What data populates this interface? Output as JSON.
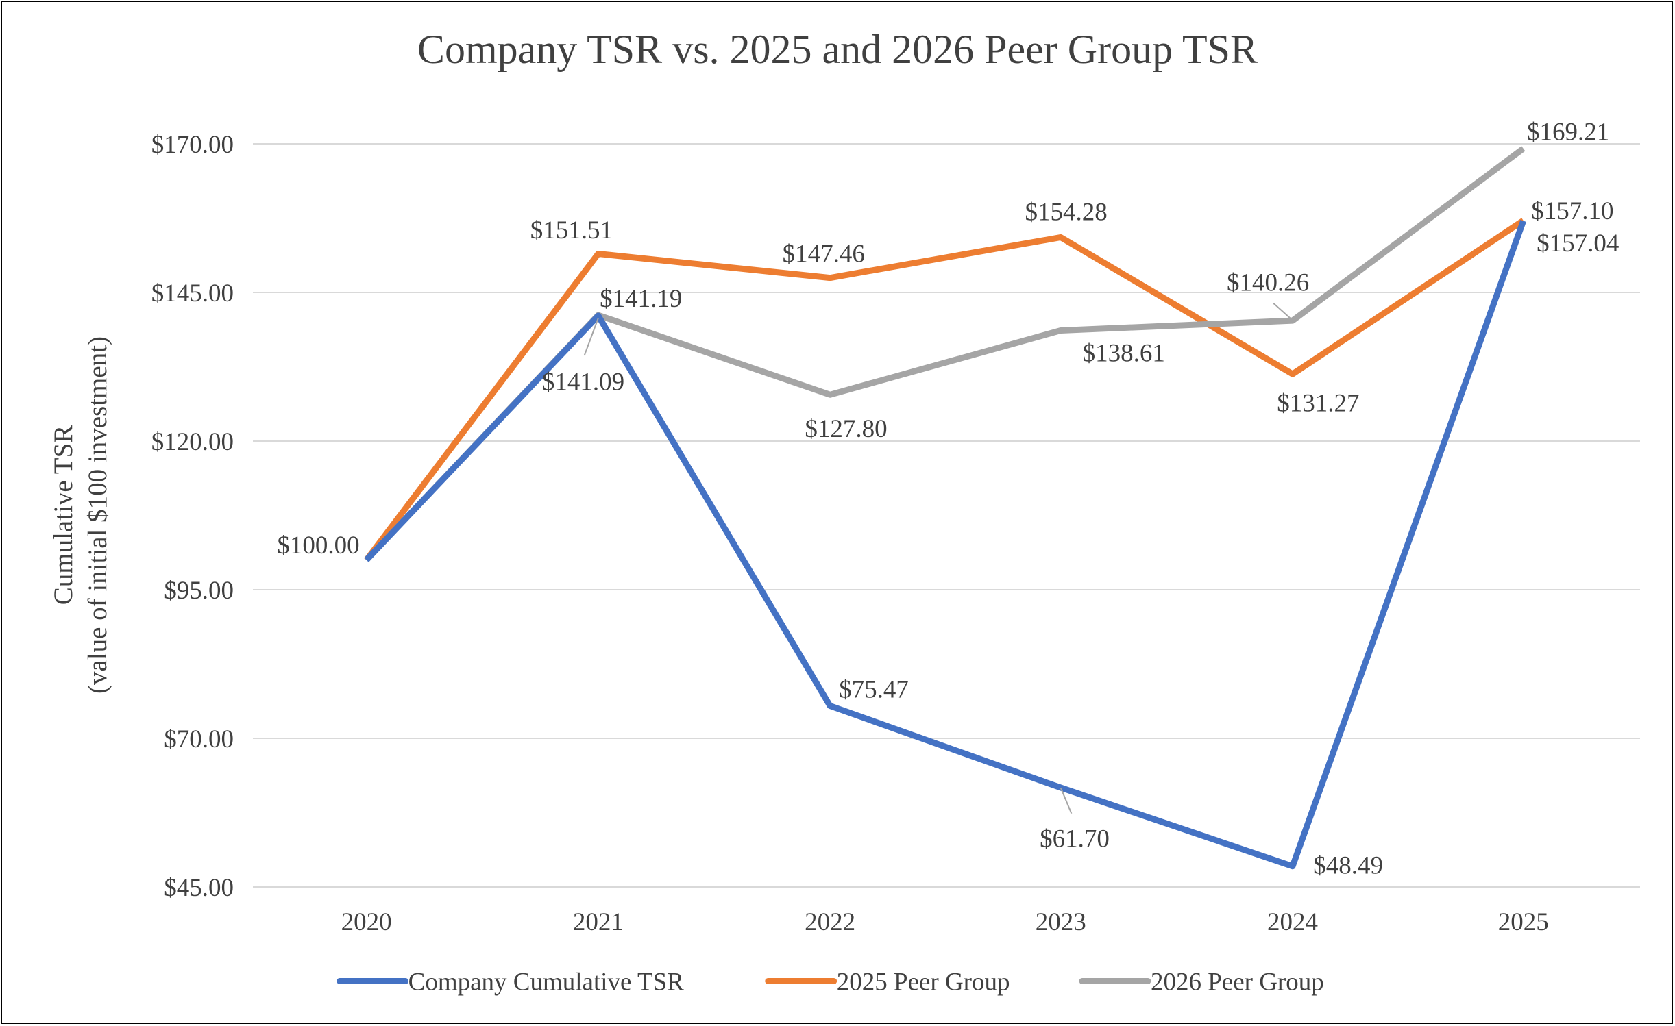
{
  "chart_data": {
    "type": "line",
    "title": "Company TSR vs. 2025 and 2026 Peer Group TSR",
    "xlabel": "",
    "ylabel": [
      "Cumulative TSR",
      "(value of initial $100 investment)"
    ],
    "categories": [
      "2020",
      "2021",
      "2022",
      "2023",
      "2024",
      "2025"
    ],
    "ylim": [
      45,
      170
    ],
    "yticks": [
      45,
      70,
      95,
      120,
      145,
      170
    ],
    "ytick_labels": [
      "$45.00",
      "$70.00",
      "$95.00",
      "$120.00",
      "$145.00",
      "$170.00"
    ],
    "grid": "horizontal",
    "legend_position": "bottom",
    "series": [
      {
        "name": "Company Cumulative TSR",
        "color": "#4472C4",
        "values": [
          100.0,
          141.09,
          75.47,
          61.7,
          48.49,
          157.04
        ],
        "labels": [
          "$100.00",
          "$141.09",
          "$75.47",
          "$61.70",
          "$48.49",
          "$157.04"
        ]
      },
      {
        "name": "2025 Peer Group",
        "color": "#ED7D31",
        "values": [
          100.0,
          151.51,
          147.46,
          154.28,
          131.27,
          157.1
        ],
        "labels": [
          null,
          "$151.51",
          "$147.46",
          "$154.28",
          "$131.27",
          "$157.10"
        ]
      },
      {
        "name": "2026 Peer Group",
        "color": "#A5A5A5",
        "values": [
          100.0,
          141.19,
          127.8,
          138.61,
          140.26,
          169.21
        ],
        "labels": [
          null,
          "$141.19",
          "$127.80",
          "$138.61",
          "$140.26",
          "$169.21"
        ]
      }
    ]
  }
}
